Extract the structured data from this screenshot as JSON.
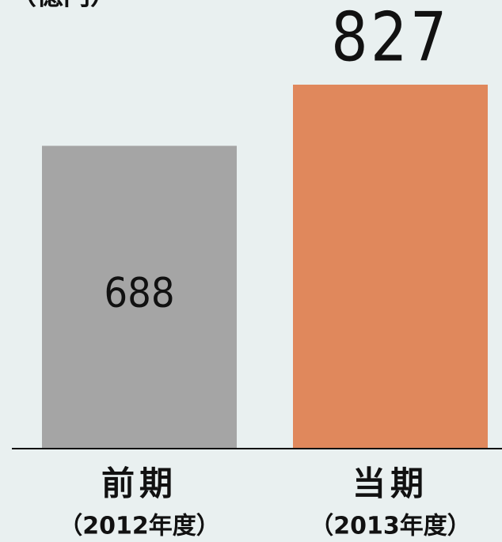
{
  "chart_data": {
    "type": "bar",
    "unit_label": "（億円）",
    "categories": [
      "前期",
      "当期"
    ],
    "periods": [
      "（2012年度）",
      "（2013年度）"
    ],
    "values": [
      688,
      827
    ],
    "colors": [
      "#a5a5a5",
      "#e0885c"
    ]
  }
}
